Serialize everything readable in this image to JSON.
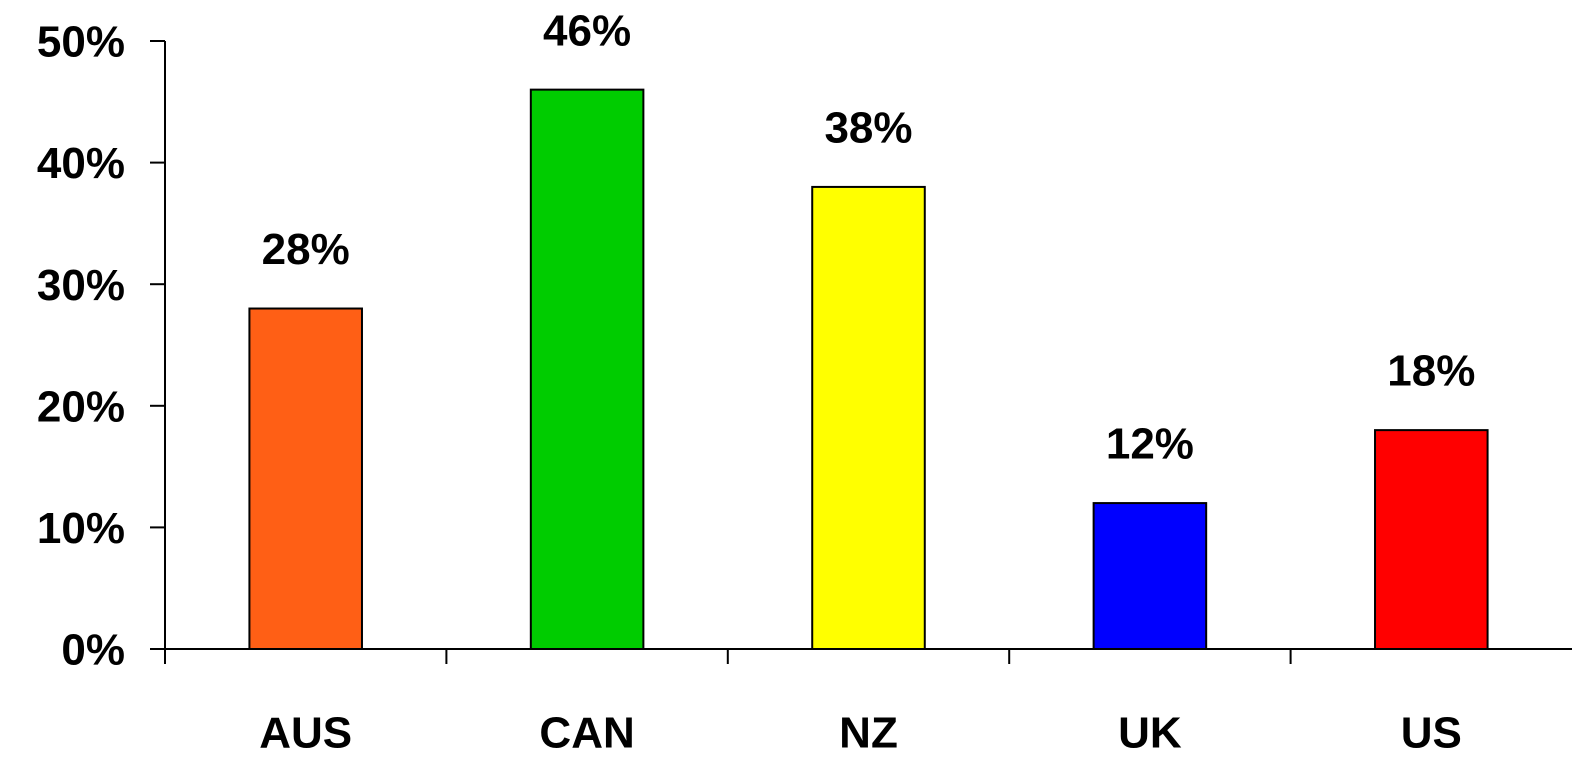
{
  "chart_data": {
    "type": "bar",
    "categories": [
      "AUS",
      "CAN",
      "NZ",
      "UK",
      "US"
    ],
    "values": [
      28,
      46,
      38,
      12,
      18
    ],
    "value_labels": [
      "28%",
      "46%",
      "38%",
      "12%",
      "18%"
    ],
    "colors": [
      "#ff5f15",
      "#00cc00",
      "#ffff00",
      "#0000ff",
      "#ff0000"
    ],
    "ylim": [
      0,
      50
    ],
    "yticks": [
      {
        "value": 0,
        "label": "0%"
      },
      {
        "value": 10,
        "label": "10%"
      },
      {
        "value": 20,
        "label": "20%"
      },
      {
        "value": 30,
        "label": "30%"
      },
      {
        "value": 40,
        "label": "40%"
      },
      {
        "value": 50,
        "label": "50%"
      }
    ],
    "grid": false
  }
}
